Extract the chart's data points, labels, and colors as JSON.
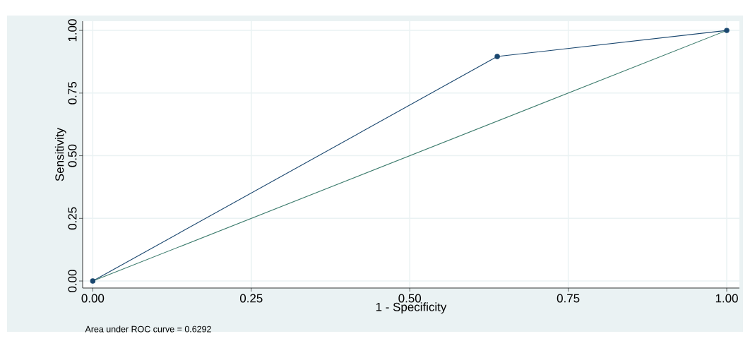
{
  "chart_data": {
    "type": "line",
    "xlabel": "1 - Specificity",
    "ylabel": "Sensitivity",
    "annotations": [
      "Area under ROC curve = 0.6292"
    ],
    "series": [
      {
        "x": [
          0,
          0.638,
          1
        ],
        "values": [
          0,
          0.896,
          1
        ],
        "color": "#1a476f",
        "marker": "circle"
      },
      {
        "x": [
          0,
          1
        ],
        "values": [
          0,
          1
        ],
        "color": "#3b7b6c",
        "marker": "none"
      }
    ],
    "xlim": [
      -0.016,
      1.02
    ],
    "ylim": [
      -0.028,
      1.037
    ],
    "xticks": [
      {
        "value": 0,
        "label": "0.00"
      },
      {
        "value": 0.25,
        "label": "0.25"
      },
      {
        "value": 0.5,
        "label": "0.50"
      },
      {
        "value": 0.75,
        "label": "0.75"
      },
      {
        "value": 1,
        "label": "1.00"
      }
    ],
    "yticks": [
      {
        "value": 0,
        "label": "0.00"
      },
      {
        "value": 0.25,
        "label": "0.25"
      },
      {
        "value": 0.5,
        "label": "0.50"
      },
      {
        "value": 0.75,
        "label": "0.75"
      },
      {
        "value": 1,
        "label": "1.00"
      }
    ],
    "grid": true
  }
}
